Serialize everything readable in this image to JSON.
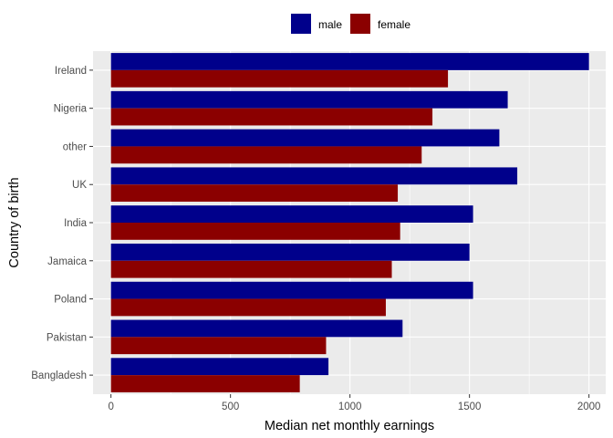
{
  "chart_data": {
    "type": "bar",
    "orientation": "horizontal",
    "title": "",
    "xlabel": "Median net monthly earnings",
    "ylabel": "Country of birth",
    "xlim": [
      -75,
      2070
    ],
    "xticks": [
      0,
      500,
      1000,
      1500,
      2000
    ],
    "grid": true,
    "legend_position": "top",
    "categories": [
      "Ireland",
      "Nigeria",
      "other",
      "UK",
      "India",
      "Jamaica",
      "Poland",
      "Pakistan",
      "Bangladesh"
    ],
    "series": [
      {
        "name": "male",
        "color": "#00008b",
        "values": [
          2000,
          1660,
          1625,
          1700,
          1515,
          1500,
          1515,
          1220,
          910
        ]
      },
      {
        "name": "female",
        "color": "#8b0000",
        "values": [
          1410,
          1345,
          1300,
          1200,
          1210,
          1175,
          1150,
          900,
          790
        ]
      }
    ]
  }
}
